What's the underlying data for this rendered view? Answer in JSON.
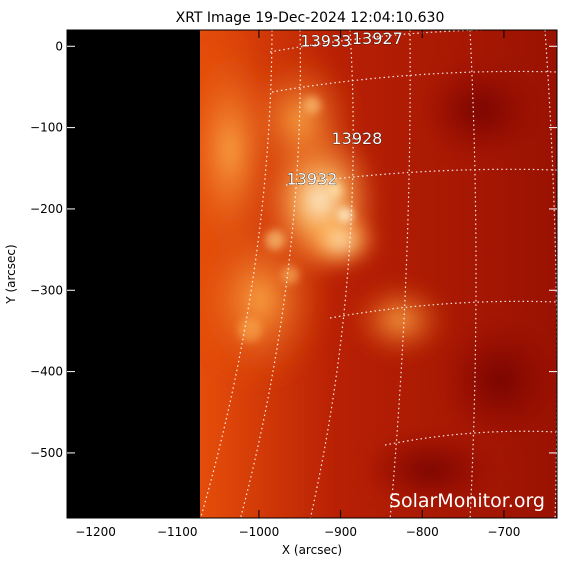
{
  "title": "XRT Image 19-Dec-2024 12:04:10.630",
  "watermark": "SolarMonitor.org",
  "colors": {
    "frame": "#000000",
    "grid": "#ffffff",
    "sun_low": "#7a0800",
    "sun_high": "#fff2cc"
  },
  "axes": {
    "xlabel": "X (arcsec)",
    "ylabel": "Y (arcsec)",
    "xlim": [
      -1235,
      -635
    ],
    "ylim": [
      -580,
      20
    ],
    "x_ticks": [
      {
        "value": -1200,
        "label": "−1200"
      },
      {
        "value": -1100,
        "label": "−1100"
      },
      {
        "value": -1000,
        "label": "−1000"
      },
      {
        "value": -900,
        "label": "−900"
      },
      {
        "value": -800,
        "label": "−800"
      },
      {
        "value": -700,
        "label": "−700"
      }
    ],
    "y_ticks": [
      {
        "value": 0,
        "label": "0"
      },
      {
        "value": -100,
        "label": "−100"
      },
      {
        "value": -200,
        "label": "−200"
      },
      {
        "value": -300,
        "label": "−300"
      },
      {
        "value": -400,
        "label": "−400"
      },
      {
        "value": -500,
        "label": "−500"
      }
    ]
  },
  "regions": [
    {
      "label": "13933",
      "x": -918,
      "y": 0
    },
    {
      "label": "13927",
      "x": -855,
      "y": 3
    },
    {
      "label": "13928",
      "x": -880,
      "y": -120
    },
    {
      "label": "13932",
      "x": -935,
      "y": -170
    }
  ]
}
